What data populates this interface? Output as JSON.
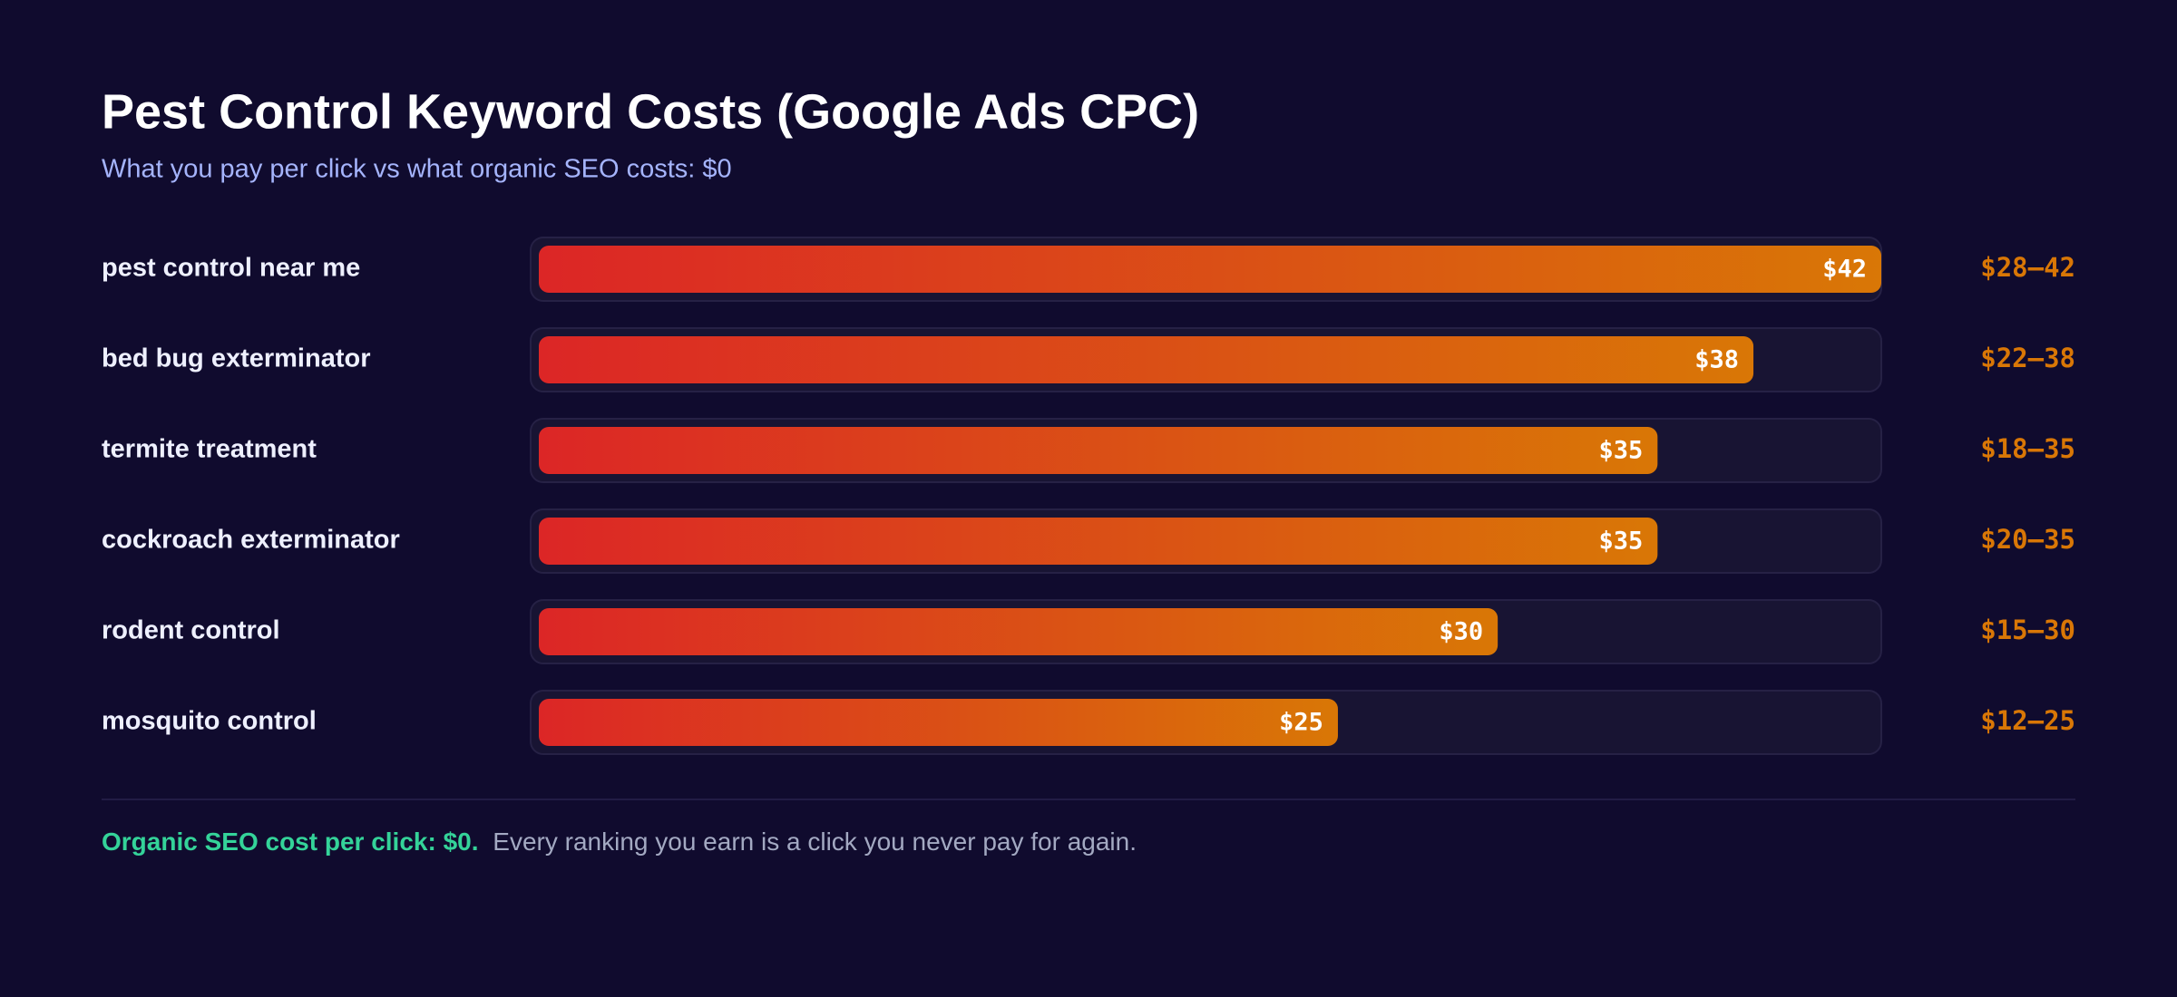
{
  "chart_data": {
    "type": "hbar",
    "title": "Pest Control Keyword Costs (Google Ads CPC)",
    "subtitle": "What you pay per click vs what organic SEO costs: $0",
    "categories": [
      "pest control near me",
      "bed bug exterminator",
      "termite treatment",
      "cockroach exterminator",
      "rodent control",
      "mosquito control"
    ],
    "values": [
      42,
      38,
      35,
      35,
      30,
      25
    ],
    "value_labels": [
      "$42",
      "$38",
      "$35",
      "$35",
      "$30",
      "$25"
    ],
    "ranges": [
      "$28–42",
      "$22–38",
      "$18–35",
      "$20–35",
      "$15–30",
      "$12–25"
    ],
    "xlim": [
      0,
      42
    ],
    "colors": [
      "#dc2626",
      "#d97706"
    ],
    "footnote": {
      "highlight": "Organic SEO cost per click: $0.",
      "text": "Every ranking you earn is a click you never pay for again."
    }
  }
}
